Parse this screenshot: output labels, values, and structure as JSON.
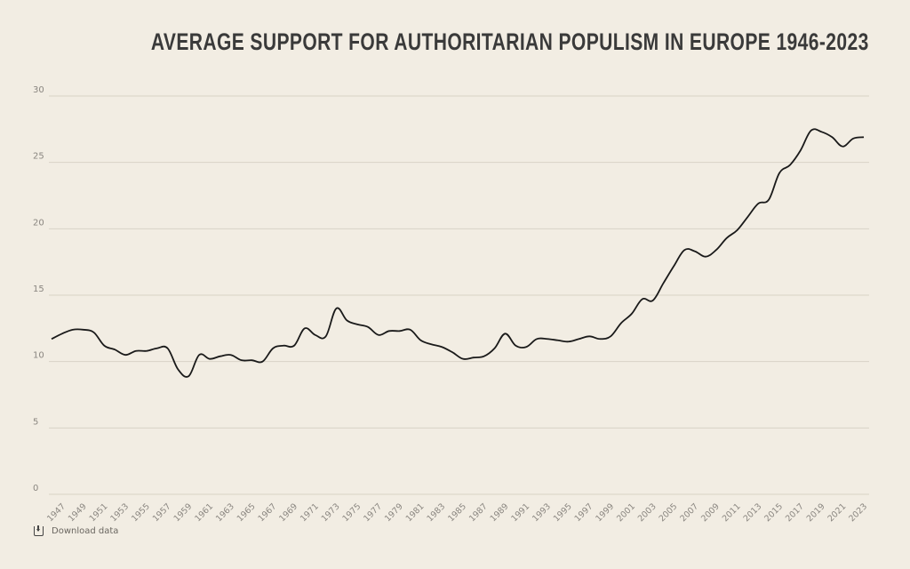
{
  "chart_data": {
    "type": "line",
    "title": "Average support for authoritarian populism in Europe 1946-2023",
    "xlabel": "",
    "ylabel": "",
    "ylim": [
      0,
      30
    ],
    "yticks": [
      0,
      5,
      10,
      15,
      20,
      25,
      30
    ],
    "xticks": [
      1947,
      1949,
      1951,
      1953,
      1955,
      1957,
      1959,
      1961,
      1963,
      1965,
      1967,
      1969,
      1971,
      1973,
      1975,
      1977,
      1979,
      1981,
      1983,
      1985,
      1987,
      1989,
      1991,
      1993,
      1995,
      1997,
      1999,
      2001,
      2003,
      2005,
      2007,
      2009,
      2011,
      2013,
      2015,
      2017,
      2019,
      2021,
      2023
    ],
    "grid": true,
    "line_color": "#1a1a1a",
    "x": [
      1946,
      1947,
      1948,
      1949,
      1950,
      1951,
      1952,
      1953,
      1954,
      1955,
      1956,
      1957,
      1958,
      1959,
      1960,
      1961,
      1962,
      1963,
      1964,
      1965,
      1966,
      1967,
      1968,
      1969,
      1970,
      1971,
      1972,
      1973,
      1974,
      1975,
      1976,
      1977,
      1978,
      1979,
      1980,
      1981,
      1982,
      1983,
      1984,
      1985,
      1986,
      1987,
      1988,
      1989,
      1990,
      1991,
      1992,
      1993,
      1994,
      1995,
      1996,
      1997,
      1998,
      1999,
      2000,
      2001,
      2002,
      2003,
      2004,
      2005,
      2006,
      2007,
      2008,
      2009,
      2010,
      2011,
      2012,
      2013,
      2014,
      2015,
      2016,
      2017,
      2018,
      2019,
      2020,
      2021,
      2022,
      2023
    ],
    "values": [
      11.7,
      12.1,
      12.4,
      12.4,
      12.2,
      11.2,
      10.9,
      10.5,
      10.8,
      10.8,
      11.0,
      11.0,
      9.4,
      8.9,
      10.5,
      10.2,
      10.4,
      10.5,
      10.1,
      10.1,
      10.0,
      11.0,
      11.2,
      11.2,
      12.5,
      12.0,
      11.9,
      14.0,
      13.1,
      12.8,
      12.6,
      12.0,
      12.3,
      12.3,
      12.4,
      11.6,
      11.3,
      11.1,
      10.7,
      10.2,
      10.3,
      10.4,
      11.0,
      12.1,
      11.2,
      11.1,
      11.7,
      11.7,
      11.6,
      11.5,
      11.7,
      11.9,
      11.7,
      11.9,
      12.9,
      13.6,
      14.7,
      14.6,
      15.9,
      17.2,
      18.4,
      18.3,
      17.9,
      18.4,
      19.3,
      19.9,
      20.9,
      21.9,
      22.2,
      24.2,
      24.8,
      25.9,
      27.4,
      27.3,
      26.9,
      26.2,
      26.8,
      26.9
    ]
  },
  "download_label": "Download data",
  "download_icon": "download-icon"
}
